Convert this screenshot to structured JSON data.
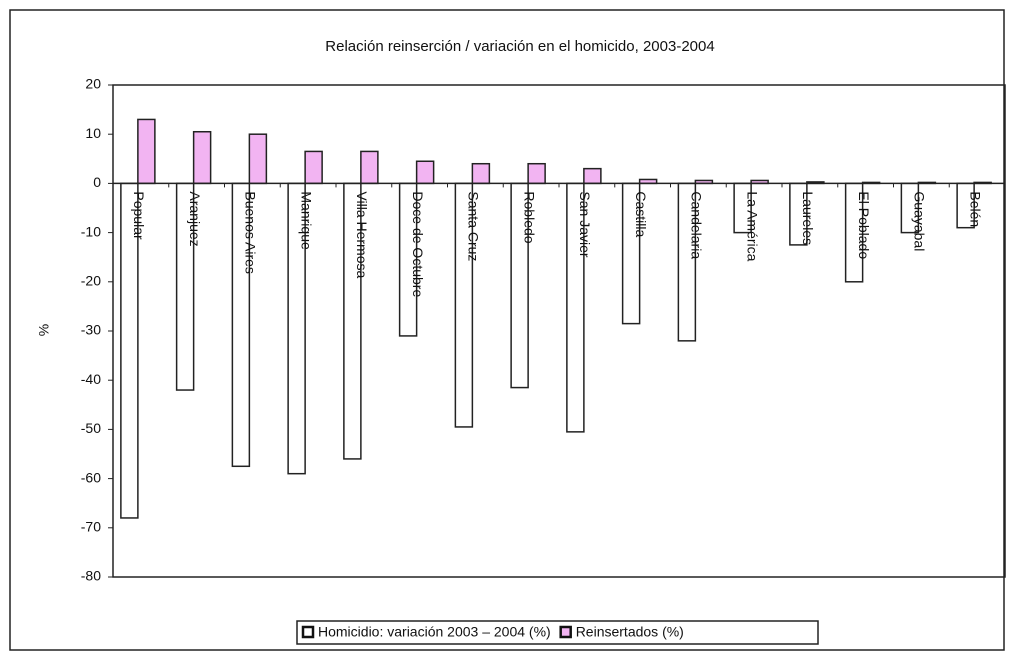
{
  "chart_data": {
    "type": "bar",
    "title": "Relación reinserción / variación en el homicido, 2003-2004",
    "ylabel": "%",
    "categories": [
      "Popular",
      "Aranjuez",
      "Buenos Aires",
      "Manrique",
      "Villa Hermosa",
      "Doce de Octubre",
      "Santa Cruz",
      "Robledo",
      "San Javier",
      "Castilla",
      "Candelaria",
      "La América",
      "Laureles",
      "El Poblado",
      "Guayabal",
      "Belén"
    ],
    "series": [
      {
        "name": "Homicidio: variación 2003 – 2004 (%)",
        "color": "#ffffff",
        "values": [
          -68,
          -42,
          -57.5,
          -59,
          -56,
          -31,
          -49.5,
          -41.5,
          -50.5,
          -28.5,
          -32,
          -10,
          -12.5,
          -20,
          -10,
          -9
        ]
      },
      {
        "name": "Reinsertados (%)",
        "color": "#f2b4f2",
        "values": [
          13,
          10.5,
          10,
          6.5,
          6.5,
          4.5,
          4,
          4,
          3,
          0.8,
          0.6,
          0.6,
          0.3,
          0.2,
          0.2,
          0.2
        ]
      }
    ],
    "ylim": [
      -80,
      20
    ],
    "yticks": [
      -80,
      -70,
      -60,
      -50,
      -40,
      -30,
      -20,
      -10,
      0,
      10,
      20
    ],
    "legend": "bottom"
  }
}
